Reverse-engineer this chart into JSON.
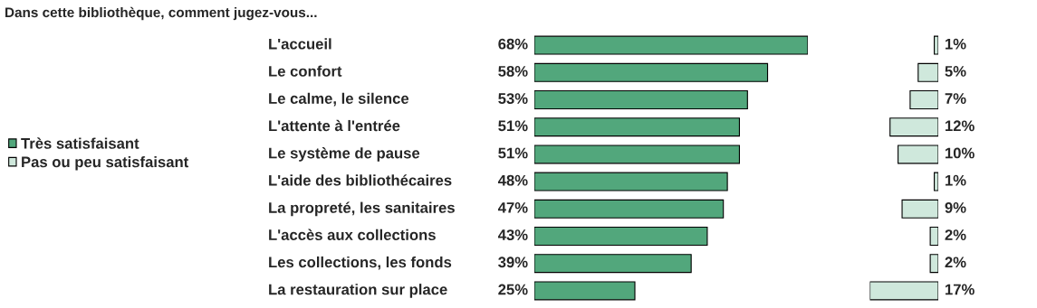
{
  "chart_data": [
    {
      "type": "bar",
      "orientation": "horizontal",
      "title": "Dans cette bibliothèque, comment jugez-vous...",
      "categories": [
        "L'accueil",
        "Le confort",
        "Le calme, le silence",
        "L'attente à l'entrée",
        "Le système de pause",
        "L'aide des bibliothécaires",
        "La propreté, les sanitaires",
        "L'accès aux collections",
        "Les collections, les fonds",
        "La restauration sur place"
      ],
      "series": [
        {
          "name": "Très satisfaisant",
          "color": "#52a77c",
          "values": [
            68,
            58,
            53,
            51,
            51,
            48,
            47,
            43,
            39,
            25
          ],
          "value_labels": [
            "68%",
            "58%",
            "53%",
            "51%",
            "51%",
            "48%",
            "47%",
            "43%",
            "39%",
            "25%"
          ]
        }
      ],
      "legend": "left"
    },
    {
      "type": "bar",
      "orientation": "horizontal",
      "categories": [
        null,
        null,
        null,
        null,
        null,
        null,
        null,
        null,
        null,
        null
      ],
      "series": [
        {
          "name": "Pas ou peu satisfaisant",
          "color": "#cfe8dc",
          "values": [
            1,
            5,
            7,
            12,
            10,
            1,
            9,
            2,
            2,
            17
          ],
          "value_labels": [
            "1%",
            "5%",
            "7%",
            "12%",
            "10%",
            "1%",
            "9%",
            "2%",
            "2%",
            "17%"
          ]
        }
      ]
    }
  ]
}
